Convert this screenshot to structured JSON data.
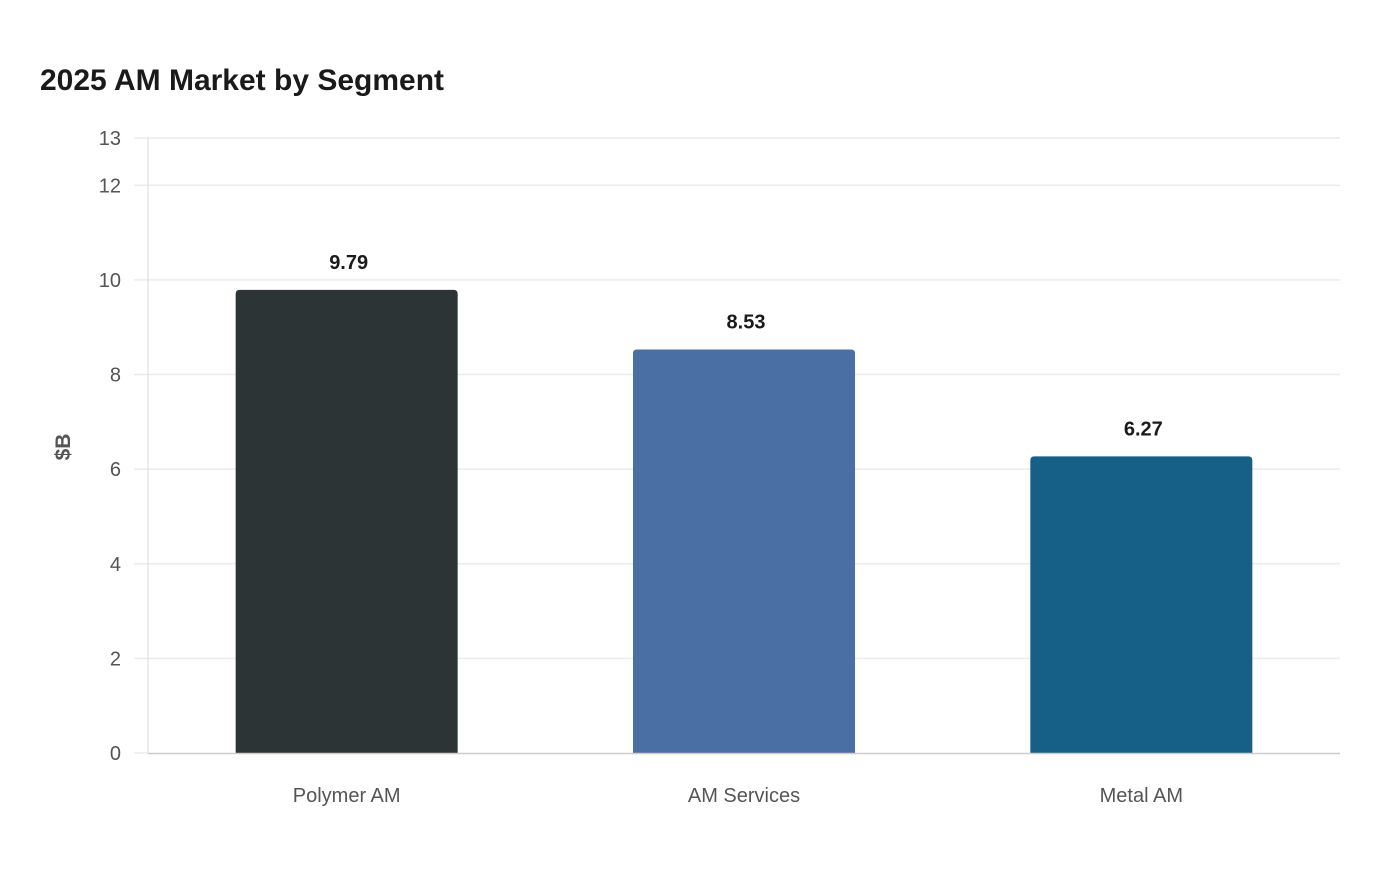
{
  "chart_data": {
    "type": "bar",
    "title": "2025 AM Market by Segment",
    "xlabel": "",
    "ylabel": "$B",
    "categories": [
      "Polymer AM",
      "AM Services",
      "Metal AM"
    ],
    "values": [
      9.79,
      8.53,
      6.27
    ],
    "data_labels": [
      "9.79",
      "8.53",
      "6.27"
    ],
    "colors": [
      "#2d3436",
      "#4a6fa5",
      "#166088"
    ],
    "ylim": [
      0,
      13
    ],
    "yticks": [
      0,
      2,
      4,
      6,
      8,
      10,
      12,
      13
    ],
    "grid": true,
    "legend": "none"
  }
}
